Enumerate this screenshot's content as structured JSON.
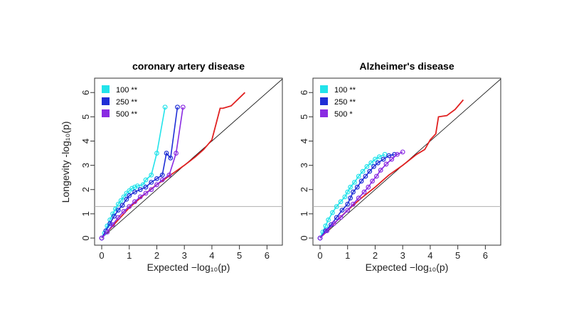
{
  "figure": {
    "shared_xlabel": "Expected −log₁₀(p)",
    "shared_ylabel": "Longevity -log₁₀(p)"
  },
  "chart_data": [
    {
      "type": "line",
      "title": "coronary artery disease",
      "xlabel": "Expected −log₁₀(p)",
      "ylabel": "Longevity -log₁₀(p)",
      "xlim": [
        0,
        6.3
      ],
      "ylim": [
        0,
        6.3
      ],
      "xticks": [
        0,
        1,
        2,
        3,
        4,
        5,
        6
      ],
      "yticks": [
        0,
        1,
        2,
        3,
        4,
        5,
        6
      ],
      "reference_line": {
        "type": "diagonal",
        "color": "#000000"
      },
      "threshold_line": {
        "y": 1.3,
        "color": "#b0b0b0"
      },
      "legend": {
        "position": "top-left",
        "entries": [
          {
            "label": "100 **",
            "color": "#22e3ea"
          },
          {
            "label": "250 **",
            "color": "#1f2ed6"
          },
          {
            "label": "500 **",
            "color": "#8a2be2"
          }
        ]
      },
      "series": [
        {
          "color": "#e02020",
          "markers": false,
          "x": [
            0,
            0.2,
            0.4,
            0.6,
            0.8,
            1.0,
            1.3,
            1.6,
            2.0,
            2.5,
            3.0,
            3.4,
            3.7,
            4.0,
            4.3,
            4.4,
            4.7,
            5.2
          ],
          "y": [
            0,
            0.25,
            0.5,
            0.75,
            1.0,
            1.25,
            1.55,
            1.85,
            2.2,
            2.6,
            3.0,
            3.35,
            3.65,
            4.05,
            5.35,
            5.35,
            5.45,
            6.0
          ]
        },
        {
          "name": "100 **",
          "color": "#22e3ea",
          "markers": true,
          "x": [
            0,
            0.1,
            0.2,
            0.3,
            0.4,
            0.5,
            0.6,
            0.7,
            0.8,
            0.9,
            1.0,
            1.1,
            1.2,
            1.3,
            1.5,
            1.6,
            1.8,
            2.0,
            2.3
          ],
          "y": [
            0,
            0.2,
            0.5,
            0.75,
            1.0,
            1.2,
            1.4,
            1.55,
            1.7,
            1.85,
            1.95,
            2.05,
            2.1,
            2.15,
            2.2,
            2.4,
            2.6,
            3.5,
            5.4
          ]
        },
        {
          "name": "250 **",
          "color": "#1f2ed6",
          "markers": true,
          "x": [
            0,
            0.15,
            0.3,
            0.45,
            0.6,
            0.75,
            0.9,
            1.0,
            1.2,
            1.4,
            1.6,
            1.8,
            2.0,
            2.2,
            2.35,
            2.5,
            2.75
          ],
          "y": [
            0,
            0.3,
            0.6,
            0.9,
            1.15,
            1.35,
            1.6,
            1.75,
            1.9,
            2.0,
            2.1,
            2.3,
            2.45,
            2.6,
            3.5,
            3.3,
            5.4
          ]
        },
        {
          "name": "500 **",
          "color": "#8a2be2",
          "markers": true,
          "x": [
            0,
            0.2,
            0.4,
            0.6,
            0.8,
            1.0,
            1.2,
            1.4,
            1.6,
            1.8,
            2.0,
            2.2,
            2.45,
            2.7,
            2.95
          ],
          "y": [
            0,
            0.25,
            0.55,
            0.85,
            1.1,
            1.3,
            1.5,
            1.7,
            1.85,
            2.0,
            2.2,
            2.4,
            2.6,
            3.5,
            5.4
          ]
        }
      ]
    },
    {
      "type": "line",
      "title": "Alzheimer's disease",
      "xlabel": "Expected −log₁₀(p)",
      "ylabel": "",
      "xlim": [
        0,
        6.3
      ],
      "ylim": [
        0,
        6.3
      ],
      "xticks": [
        0,
        1,
        2,
        3,
        4,
        5,
        6
      ],
      "yticks": [
        0,
        1,
        2,
        3,
        4,
        5,
        6
      ],
      "reference_line": {
        "type": "diagonal",
        "color": "#000000"
      },
      "threshold_line": {
        "y": 1.3,
        "color": "#b0b0b0"
      },
      "legend": {
        "position": "top-left",
        "entries": [
          {
            "label": "100 **",
            "color": "#22e3ea"
          },
          {
            "label": "250 **",
            "color": "#1f2ed6"
          },
          {
            "label": "500 *",
            "color": "#8a2be2"
          }
        ]
      },
      "series": [
        {
          "color": "#e02020",
          "markers": false,
          "x": [
            0,
            0.3,
            0.6,
            1.0,
            1.5,
            2.0,
            2.5,
            3.0,
            3.5,
            3.8,
            4.0,
            4.2,
            4.3,
            4.6,
            4.9,
            5.2
          ],
          "y": [
            0,
            0.35,
            0.7,
            1.15,
            1.65,
            2.1,
            2.6,
            3.0,
            3.45,
            3.65,
            4.05,
            4.3,
            5.0,
            5.05,
            5.3,
            5.7
          ]
        },
        {
          "name": "100 **",
          "color": "#22e3ea",
          "markers": true,
          "x": [
            0,
            0.1,
            0.2,
            0.3,
            0.45,
            0.6,
            0.75,
            0.9,
            1.0,
            1.1,
            1.25,
            1.4,
            1.55,
            1.7,
            1.85,
            2.0,
            2.15,
            2.35
          ],
          "y": [
            0,
            0.25,
            0.5,
            0.75,
            1.05,
            1.3,
            1.5,
            1.7,
            1.9,
            2.1,
            2.3,
            2.55,
            2.75,
            2.95,
            3.1,
            3.25,
            3.35,
            3.45
          ]
        },
        {
          "name": "250 **",
          "color": "#1f2ed6",
          "markers": true,
          "x": [
            0,
            0.2,
            0.4,
            0.6,
            0.8,
            1.0,
            1.1,
            1.2,
            1.35,
            1.5,
            1.65,
            1.8,
            1.95,
            2.1,
            2.3,
            2.5,
            2.7
          ],
          "y": [
            0,
            0.3,
            0.55,
            0.85,
            1.15,
            1.4,
            1.65,
            1.9,
            2.1,
            2.35,
            2.55,
            2.75,
            2.95,
            3.1,
            3.25,
            3.4,
            3.45
          ]
        },
        {
          "name": "500 *",
          "color": "#8a2be2",
          "markers": true,
          "x": [
            0,
            0.25,
            0.5,
            0.75,
            1.0,
            1.2,
            1.4,
            1.6,
            1.75,
            1.9,
            2.05,
            2.2,
            2.4,
            2.6,
            2.8,
            3.0
          ],
          "y": [
            0,
            0.3,
            0.6,
            0.85,
            1.15,
            1.4,
            1.65,
            1.9,
            2.1,
            2.35,
            2.55,
            2.8,
            3.05,
            3.25,
            3.45,
            3.55
          ]
        }
      ]
    }
  ]
}
